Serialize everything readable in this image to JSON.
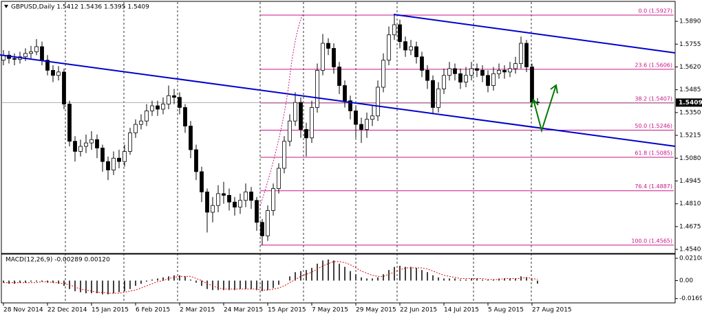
{
  "chart_data": {
    "type": "candlestick",
    "title": "GBPUSD,Daily  1.5412 1.5436 1.5395 1.5409",
    "categories": [
      "28 Nov 2014",
      null,
      null,
      null,
      null,
      null,
      null,
      null,
      "22 Dec 2014",
      null,
      null,
      null,
      null,
      null,
      null,
      null,
      "15 Jan 2015",
      null,
      null,
      null,
      null,
      null,
      null,
      null,
      "6 Feb 2015",
      null,
      null,
      null,
      null,
      null,
      null,
      null,
      "2 Mar 2015",
      null,
      null,
      null,
      null,
      null,
      null,
      null,
      "24 Mar 2015",
      null,
      null,
      null,
      null,
      null,
      null,
      null,
      "15 Apr 2015",
      null,
      null,
      null,
      null,
      null,
      null,
      null,
      "7 May 2015",
      null,
      null,
      null,
      null,
      null,
      null,
      null,
      "29 May 2015",
      null,
      null,
      null,
      null,
      null,
      null,
      null,
      "22 Jun 2015",
      null,
      null,
      null,
      null,
      null,
      null,
      null,
      "14 Jul 2015",
      null,
      null,
      null,
      null,
      null,
      null,
      null,
      "5 Aug 2015",
      null,
      null,
      null,
      null,
      null,
      null,
      null,
      "27 Aug 2015",
      null
    ],
    "ohlc": [
      [
        1.566,
        1.572,
        1.563,
        1.569
      ],
      [
        1.569,
        1.5715,
        1.564,
        1.567
      ],
      [
        1.567,
        1.57,
        1.563,
        1.5665
      ],
      [
        1.5665,
        1.571,
        1.564,
        1.568
      ],
      [
        1.568,
        1.573,
        1.5655,
        1.57
      ],
      [
        1.57,
        1.5745,
        1.567,
        1.571
      ],
      [
        1.571,
        1.5785,
        1.569,
        1.574
      ],
      [
        1.574,
        1.577,
        1.563,
        1.566
      ],
      [
        1.566,
        1.569,
        1.557,
        1.56
      ],
      [
        1.56,
        1.563,
        1.553,
        1.557
      ],
      [
        1.557,
        1.5625,
        1.554,
        1.559
      ],
      [
        1.559,
        1.561,
        1.537,
        1.54
      ],
      [
        1.54,
        1.542,
        1.515,
        1.518
      ],
      [
        1.518,
        1.521,
        1.506,
        1.512
      ],
      [
        1.512,
        1.519,
        1.509,
        1.515
      ],
      [
        1.515,
        1.522,
        1.511,
        1.517
      ],
      [
        1.517,
        1.524,
        1.513,
        1.519
      ],
      [
        1.519,
        1.522,
        1.508,
        1.514
      ],
      [
        1.514,
        1.516,
        1.5,
        1.506
      ],
      [
        1.506,
        1.509,
        1.495,
        1.501
      ],
      [
        1.501,
        1.512,
        1.498,
        1.508
      ],
      [
        1.508,
        1.513,
        1.502,
        1.506
      ],
      [
        1.506,
        1.516,
        1.503,
        1.512
      ],
      [
        1.512,
        1.526,
        1.51,
        1.523
      ],
      [
        1.523,
        1.531,
        1.52,
        1.528
      ],
      [
        1.528,
        1.534,
        1.525,
        1.53
      ],
      [
        1.53,
        1.54,
        1.527,
        1.536
      ],
      [
        1.536,
        1.542,
        1.533,
        1.539
      ],
      [
        1.539,
        1.542,
        1.533,
        1.537
      ],
      [
        1.537,
        1.544,
        1.534,
        1.54
      ],
      [
        1.54,
        1.551,
        1.537,
        1.545
      ],
      [
        1.545,
        1.549,
        1.54,
        1.544
      ],
      [
        1.544,
        1.547,
        1.534,
        1.538
      ],
      [
        1.538,
        1.54,
        1.523,
        1.527
      ],
      [
        1.527,
        1.53,
        1.508,
        1.513
      ],
      [
        1.513,
        1.516,
        1.495,
        1.5
      ],
      [
        1.5,
        1.503,
        1.482,
        1.488
      ],
      [
        1.488,
        1.49,
        1.464,
        1.476
      ],
      [
        1.476,
        1.485,
        1.47,
        1.48
      ],
      [
        1.48,
        1.492,
        1.476,
        1.487
      ],
      [
        1.487,
        1.494,
        1.481,
        1.486
      ],
      [
        1.486,
        1.49,
        1.477,
        1.482
      ],
      [
        1.482,
        1.485,
        1.474,
        1.479
      ],
      [
        1.479,
        1.487,
        1.475,
        1.483
      ],
      [
        1.483,
        1.493,
        1.479,
        1.488
      ],
      [
        1.488,
        1.491,
        1.478,
        1.483
      ],
      [
        1.483,
        1.485,
        1.465,
        1.47
      ],
      [
        1.47,
        1.472,
        1.4565,
        1.462
      ],
      [
        1.462,
        1.48,
        1.459,
        1.477
      ],
      [
        1.477,
        1.493,
        1.474,
        1.49
      ],
      [
        1.49,
        1.505,
        1.487,
        1.502
      ],
      [
        1.502,
        1.521,
        1.499,
        1.518
      ],
      [
        1.518,
        1.534,
        1.515,
        1.53
      ],
      [
        1.53,
        1.547,
        1.527,
        1.541
      ],
      [
        1.541,
        1.544,
        1.52,
        1.525
      ],
      [
        1.525,
        1.529,
        1.509,
        1.52
      ],
      [
        1.52,
        1.542,
        1.517,
        1.538
      ],
      [
        1.538,
        1.564,
        1.535,
        1.56
      ],
      [
        1.56,
        1.5815,
        1.557,
        1.576
      ],
      [
        1.576,
        1.579,
        1.569,
        1.573
      ],
      [
        1.573,
        1.576,
        1.558,
        1.562
      ],
      [
        1.562,
        1.565,
        1.546,
        1.551
      ],
      [
        1.551,
        1.554,
        1.538,
        1.542
      ],
      [
        1.542,
        1.545,
        1.531,
        1.536
      ],
      [
        1.536,
        1.539,
        1.52,
        1.528
      ],
      [
        1.528,
        1.532,
        1.517,
        1.525
      ],
      [
        1.525,
        1.535,
        1.52,
        1.531
      ],
      [
        1.531,
        1.539,
        1.527,
        1.533
      ],
      [
        1.533,
        1.554,
        1.53,
        1.55
      ],
      [
        1.55,
        1.57,
        1.547,
        1.566
      ],
      [
        1.566,
        1.586,
        1.563,
        1.581
      ],
      [
        1.581,
        1.5927,
        1.578,
        1.587
      ],
      [
        1.587,
        1.59,
        1.573,
        1.577
      ],
      [
        1.577,
        1.58,
        1.568,
        1.572
      ],
      [
        1.572,
        1.578,
        1.569,
        1.574
      ],
      [
        1.574,
        1.577,
        1.564,
        1.568
      ],
      [
        1.568,
        1.571,
        1.556,
        1.56
      ],
      [
        1.56,
        1.563,
        1.549,
        1.554
      ],
      [
        1.554,
        1.557,
        1.534,
        1.538
      ],
      [
        1.538,
        1.553,
        1.535,
        1.549
      ],
      [
        1.549,
        1.561,
        1.546,
        1.557
      ],
      [
        1.557,
        1.565,
        1.554,
        1.561
      ],
      [
        1.561,
        1.564,
        1.554,
        1.558
      ],
      [
        1.558,
        1.561,
        1.549,
        1.553
      ],
      [
        1.553,
        1.562,
        1.55,
        1.557
      ],
      [
        1.557,
        1.565,
        1.554,
        1.561
      ],
      [
        1.561,
        1.564,
        1.556,
        1.56
      ],
      [
        1.56,
        1.563,
        1.553,
        1.557
      ],
      [
        1.557,
        1.56,
        1.547,
        1.551
      ],
      [
        1.551,
        1.562,
        1.548,
        1.558
      ],
      [
        1.558,
        1.564,
        1.555,
        1.56
      ],
      [
        1.56,
        1.563,
        1.555,
        1.559
      ],
      [
        1.559,
        1.565,
        1.556,
        1.561
      ],
      [
        1.561,
        1.568,
        1.558,
        1.564
      ],
      [
        1.564,
        1.58,
        1.561,
        1.576
      ],
      [
        1.576,
        1.578,
        1.559,
        1.562
      ],
      [
        1.562,
        1.564,
        1.538,
        1.5412
      ],
      [
        1.5412,
        1.5436,
        1.5395,
        1.5409
      ]
    ],
    "ylim": [
      1.452,
      1.5996
    ],
    "yticks": [
      {
        "value": 1.589,
        "label": "1.5890"
      },
      {
        "value": 1.5755,
        "label": "1.5755"
      },
      {
        "value": 1.562,
        "label": "1.5620"
      },
      {
        "value": 1.5485,
        "label": "1.5485"
      },
      {
        "value": 1.535,
        "label": "1.5350"
      },
      {
        "value": 1.5215,
        "label": "1.5215"
      },
      {
        "value": 1.508,
        "label": "1.5080"
      },
      {
        "value": 1.4945,
        "label": "1.4945"
      },
      {
        "value": 1.481,
        "label": "1.4810"
      },
      {
        "value": 1.4675,
        "label": "1.4675"
      },
      {
        "value": 1.454,
        "label": "1.4540"
      }
    ],
    "last_price": {
      "value": 1.5409,
      "label": "1.5409"
    },
    "fibonacci": [
      {
        "value": 1.5927,
        "label": "0.0 (1.5927)"
      },
      {
        "value": 1.5606,
        "label": "23.6 (1.5606)"
      },
      {
        "value": 1.5407,
        "label": "38.2 (1.5407)"
      },
      {
        "value": 1.5246,
        "label": "50.0 (1.5246)"
      },
      {
        "value": 1.5085,
        "label": "61.8 (1.5085)"
      },
      {
        "value": 1.4887,
        "label": "76.4 (1.4887)"
      },
      {
        "value": 1.4565,
        "label": "100.0 (1.4565)"
      }
    ],
    "fib_color": "#c71585",
    "indicator": {
      "label": "MACD(12,26,9) -0.00289 0.00120",
      "ylim": [
        -0.0211,
        0.02503
      ],
      "yticks": [
        0.02108,
        {
          "value": 0,
          "label": "0.00"
        },
        -0.01699
      ],
      "histogram_color": "#000000",
      "signal_color": "#e00000",
      "histogram": [
        -0.002,
        -0.003,
        -0.003,
        -0.002,
        -0.002,
        -0.001,
        -0.001,
        -0.001,
        -0.002,
        -0.002,
        -0.003,
        -0.005,
        -0.008,
        -0.01,
        -0.011,
        -0.012,
        -0.012,
        -0.012,
        -0.013,
        -0.013,
        -0.012,
        -0.011,
        -0.01,
        -0.008,
        -0.005,
        -0.003,
        -0.001,
        0.001,
        0.002,
        0.003,
        0.004,
        0.005,
        0.005,
        0.004,
        0.001,
        -0.002,
        -0.005,
        -0.008,
        -0.009,
        -0.009,
        -0.009,
        -0.009,
        -0.009,
        -0.008,
        -0.008,
        -0.008,
        -0.009,
        -0.01,
        -0.009,
        -0.007,
        -0.004,
        0.0,
        0.004,
        0.008,
        0.009,
        0.01,
        0.012,
        0.016,
        0.019,
        0.02,
        0.019,
        0.016,
        0.013,
        0.009,
        0.006,
        0.003,
        0.002,
        0.002,
        0.003,
        0.006,
        0.01,
        0.013,
        0.014,
        0.013,
        0.013,
        0.012,
        0.01,
        0.008,
        0.005,
        0.003,
        0.002,
        0.002,
        0.002,
        0.001,
        0.001,
        0.002,
        0.002,
        0.001,
        0.001,
        0.001,
        0.002,
        0.002,
        0.002,
        0.002,
        0.004,
        0.003,
        0.001,
        -0.00289
      ],
      "signal": [
        -0.002,
        -0.002,
        -0.002,
        -0.002,
        -0.002,
        -0.002,
        -0.002,
        -0.001,
        -0.001,
        -0.002,
        -0.002,
        -0.003,
        -0.004,
        -0.006,
        -0.008,
        -0.009,
        -0.01,
        -0.011,
        -0.011,
        -0.012,
        -0.012,
        -0.012,
        -0.011,
        -0.01,
        -0.009,
        -0.007,
        -0.005,
        -0.003,
        -0.001,
        0.0,
        0.002,
        0.003,
        0.004,
        0.004,
        0.004,
        0.002,
        0.0,
        -0.003,
        -0.005,
        -0.007,
        -0.008,
        -0.008,
        -0.008,
        -0.008,
        -0.008,
        -0.008,
        -0.008,
        -0.009,
        -0.009,
        -0.008,
        -0.007,
        -0.005,
        -0.002,
        0.001,
        0.004,
        0.006,
        0.008,
        0.011,
        0.014,
        0.016,
        0.018,
        0.018,
        0.017,
        0.015,
        0.012,
        0.009,
        0.007,
        0.005,
        0.004,
        0.004,
        0.006,
        0.008,
        0.01,
        0.012,
        0.012,
        0.012,
        0.012,
        0.011,
        0.009,
        0.007,
        0.005,
        0.004,
        0.003,
        0.002,
        0.002,
        0.002,
        0.002,
        0.002,
        0.001,
        0.001,
        0.001,
        0.002,
        0.002,
        0.002,
        0.002,
        0.003,
        0.002,
        0.0012
      ]
    }
  }
}
